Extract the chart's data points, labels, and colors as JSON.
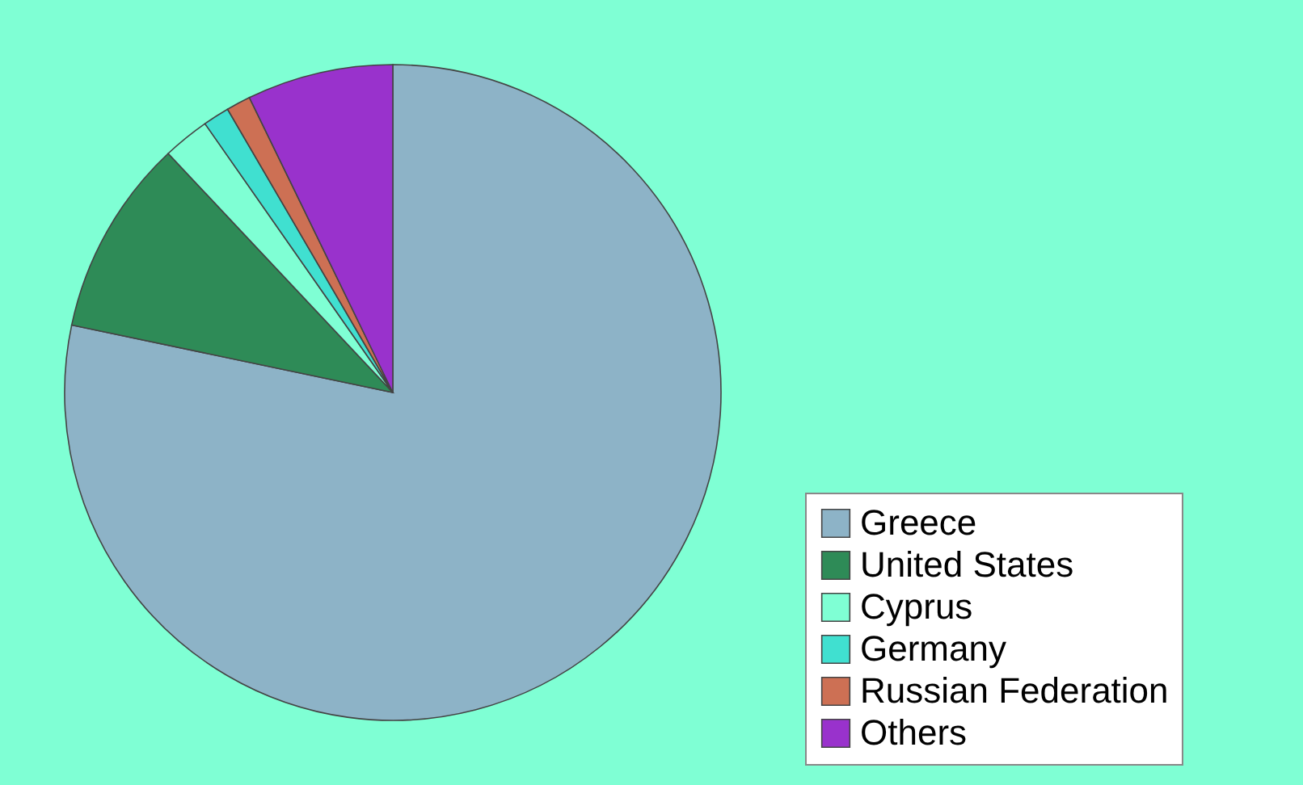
{
  "chart_data": {
    "type": "pie",
    "categories": [
      "Greece",
      "United States",
      "Cyprus",
      "Germany",
      "Russian Federation",
      "Others"
    ],
    "values": [
      78.3,
      9.7,
      2.3,
      1.3,
      1.2,
      7.2
    ],
    "colors": [
      "#8db3c7",
      "#2e8b57",
      "#7fffd4",
      "#40e0d0",
      "#cd7054",
      "#9932cc"
    ],
    "legend": "bottom right"
  }
}
